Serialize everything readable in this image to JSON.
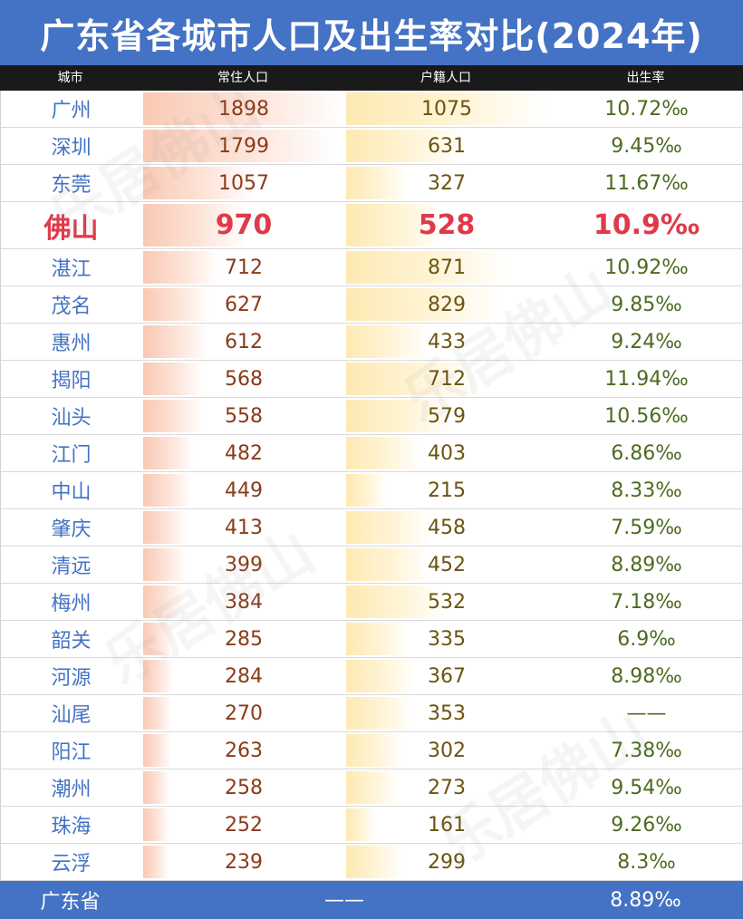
{
  "title": "广东省各城市人口及出生率对比(2024年)",
  "columns": {
    "city": "城市",
    "resident": "常住人口",
    "registered": "户籍人口",
    "birth_rate": "出生率"
  },
  "max_resident": 1898,
  "max_registered": 1075,
  "rows": [
    {
      "city": "广州",
      "resident": "1898",
      "registered": "1075",
      "birth_rate": "10.72‰"
    },
    {
      "city": "深圳",
      "resident": "1799",
      "registered": "631",
      "birth_rate": "9.45‰"
    },
    {
      "city": "东莞",
      "resident": "1057",
      "registered": "327",
      "birth_rate": "11.67‰"
    },
    {
      "city": "佛山",
      "resident": "970",
      "registered": "528",
      "birth_rate": "10.9‰",
      "highlight": true
    },
    {
      "city": "湛江",
      "resident": "712",
      "registered": "871",
      "birth_rate": "10.92‰"
    },
    {
      "city": "茂名",
      "resident": "627",
      "registered": "829",
      "birth_rate": "9.85‰"
    },
    {
      "city": "惠州",
      "resident": "612",
      "registered": "433",
      "birth_rate": "9.24‰"
    },
    {
      "city": "揭阳",
      "resident": "568",
      "registered": "712",
      "birth_rate": "11.94‰"
    },
    {
      "city": "汕头",
      "resident": "558",
      "registered": "579",
      "birth_rate": "10.56‰"
    },
    {
      "city": "江门",
      "resident": "482",
      "registered": "403",
      "birth_rate": "6.86‰"
    },
    {
      "city": "中山",
      "resident": "449",
      "registered": "215",
      "birth_rate": "8.33‰"
    },
    {
      "city": "肇庆",
      "resident": "413",
      "registered": "458",
      "birth_rate": "7.59‰"
    },
    {
      "city": "清远",
      "resident": "399",
      "registered": "452",
      "birth_rate": "8.89‰"
    },
    {
      "city": "梅州",
      "resident": "384",
      "registered": "532",
      "birth_rate": "7.18‰"
    },
    {
      "city": "韶关",
      "resident": "285",
      "registered": "335",
      "birth_rate": "6.9‰"
    },
    {
      "city": "河源",
      "resident": "284",
      "registered": "367",
      "birth_rate": "8.98‰"
    },
    {
      "city": "汕尾",
      "resident": "270",
      "registered": "353",
      "birth_rate": "——"
    },
    {
      "city": "阳江",
      "resident": "263",
      "registered": "302",
      "birth_rate": "7.38‰"
    },
    {
      "city": "潮州",
      "resident": "258",
      "registered": "273",
      "birth_rate": "9.54‰"
    },
    {
      "city": "珠海",
      "resident": "252",
      "registered": "161",
      "birth_rate": "9.26‰"
    },
    {
      "city": "云浮",
      "resident": "239",
      "registered": "299",
      "birth_rate": "8.3‰"
    }
  ],
  "footer": {
    "label": "广东省",
    "population": "——",
    "birth_rate": "8.89‰"
  },
  "watermark": "乐居佛山",
  "colors": {
    "header_blue": "#4472c4",
    "highlight_red": "#e03a4a"
  }
}
